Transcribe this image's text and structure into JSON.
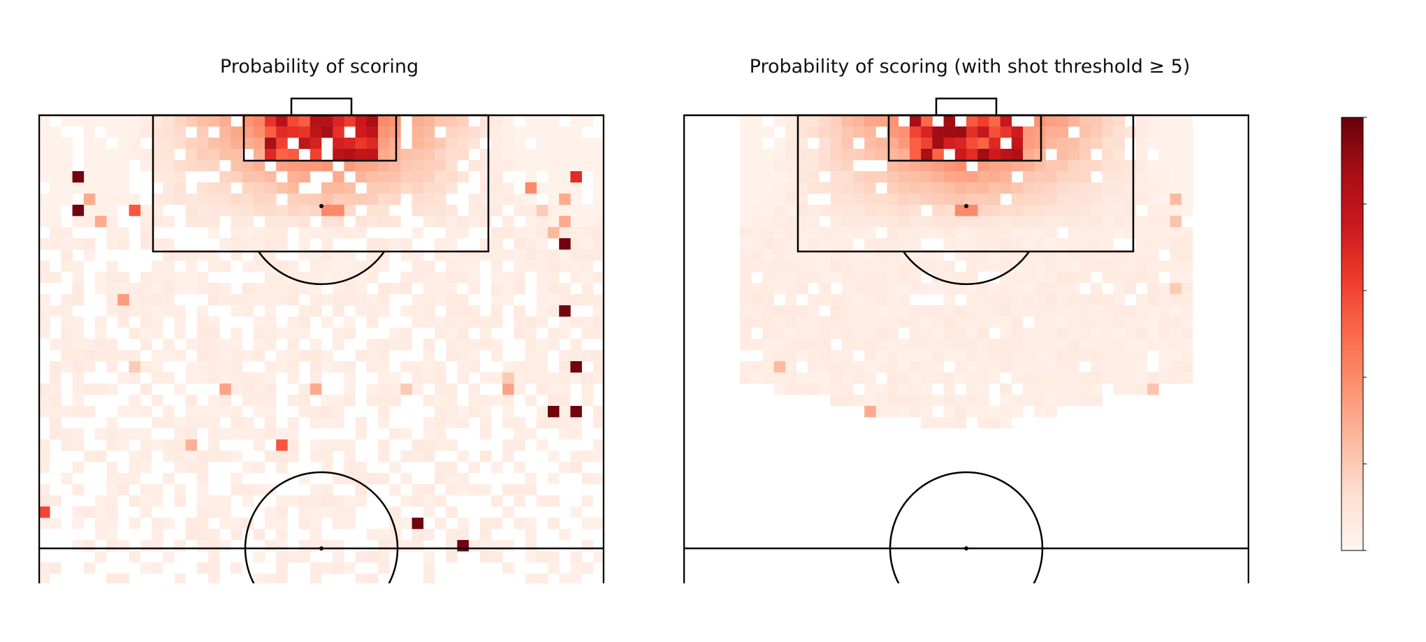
{
  "chart_data": [
    {
      "type": "heatmap",
      "title": "Probability of scoring",
      "colormap": "Reds",
      "grid": {
        "cols": 50,
        "rows": 42
      },
      "cells": [
        [
          3,
          5,
          0.98
        ],
        [
          3,
          8,
          0.98
        ],
        [
          47,
          5,
          0.68
        ],
        [
          8,
          8,
          0.55
        ],
        [
          5,
          9,
          0.3
        ],
        [
          43,
          6,
          0.4
        ],
        [
          46,
          7,
          0.3
        ],
        [
          25,
          8,
          0.4
        ],
        [
          26,
          8,
          0.4
        ],
        [
          46,
          11,
          0.98
        ],
        [
          7,
          16,
          0.35
        ],
        [
          45,
          10,
          0.25
        ],
        [
          46,
          17,
          0.98
        ],
        [
          47,
          22,
          0.98
        ],
        [
          45,
          26,
          0.98
        ],
        [
          47,
          26,
          0.98
        ],
        [
          8,
          22,
          0.2
        ],
        [
          41,
          24,
          0.32
        ],
        [
          16,
          24,
          0.32
        ],
        [
          24,
          24,
          0.3
        ],
        [
          32,
          24,
          0.2
        ],
        [
          13,
          29,
          0.28
        ],
        [
          21,
          29,
          0.55
        ],
        [
          0,
          35,
          0.6
        ],
        [
          33,
          36,
          0.98
        ],
        [
          37,
          38,
          0.98
        ],
        [
          41,
          23,
          0.2
        ],
        [
          46,
          9,
          0.3
        ],
        [
          4,
          7,
          0.3
        ],
        [
          44,
          8,
          0.2
        ]
      ],
      "colorbar": {
        "min": 0.0,
        "max": 1.0,
        "ticks": [
          "0.0",
          "0.2",
          "0.4",
          "0.6",
          "0.8",
          "1.0"
        ]
      }
    },
    {
      "type": "heatmap",
      "title": "Probability of scoring (with shot threshold ≥ 5)",
      "colormap": "Reds",
      "grid": {
        "cols": 50,
        "rows": 42
      },
      "cells": [
        [
          24,
          8,
          0.4
        ],
        [
          25,
          8,
          0.4
        ],
        [
          16,
          26,
          0.3
        ],
        [
          8,
          22,
          0.25
        ],
        [
          43,
          7,
          0.25
        ],
        [
          43,
          9,
          0.22
        ],
        [
          43,
          15,
          0.2
        ],
        [
          41,
          24,
          0.22
        ]
      ]
    }
  ]
}
